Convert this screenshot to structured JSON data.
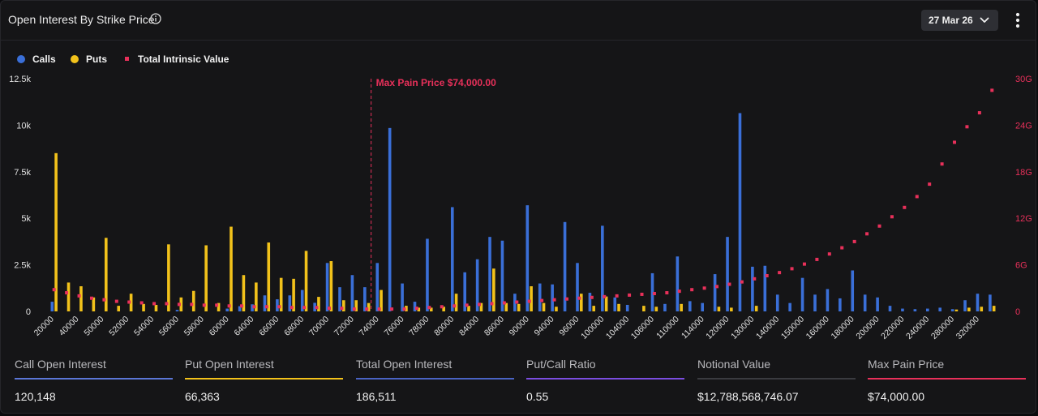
{
  "header": {
    "title": "Open Interest By Strike Price",
    "expiry": "27 Mar 26"
  },
  "legend": {
    "calls": "Calls",
    "puts": "Puts",
    "intrinsic": "Total Intrinsic Value"
  },
  "colors": {
    "calls": "#3a6fd8",
    "puts": "#f2c21b",
    "intrinsic": "#e8305a"
  },
  "stats": [
    {
      "label": "Call Open Interest",
      "value": "120,148",
      "color": "#5b76d6"
    },
    {
      "label": "Put Open Interest",
      "value": "66,363",
      "color": "#f2c21b"
    },
    {
      "label": "Total Open Interest",
      "value": "186,511",
      "color": "#4a63c4"
    },
    {
      "label": "Put/Call Ratio",
      "value": "0.55",
      "color": "#7b4de0"
    },
    {
      "label": "Notional Value",
      "value": "$12,788,568,746.07",
      "color": "#3a3b40"
    },
    {
      "label": "Max Pain Price",
      "value": "$74,000.00",
      "color": "#e8305a"
    }
  ],
  "chart_data": {
    "type": "bar",
    "title": "Open Interest By Strike Price",
    "annotation": "Max Pain Price $74,000.00",
    "max_pain_strike": 74000,
    "y_left": {
      "ticks": [
        "0",
        "2.5k",
        "5k",
        "7.5k",
        "10k",
        "12.5k"
      ],
      "range": [
        0,
        12500
      ]
    },
    "y_right": {
      "ticks": [
        "0",
        "6G",
        "12G",
        "18G",
        "24G",
        "30G"
      ],
      "range": [
        0,
        30
      ]
    },
    "x_tick_labels": [
      "20000",
      "40000",
      "50000",
      "52000",
      "54000",
      "56000",
      "58000",
      "60000",
      "64000",
      "66000",
      "68000",
      "70000",
      "72000",
      "74000",
      "76000",
      "78000",
      "80000",
      "84000",
      "86000",
      "90000",
      "94000",
      "96000",
      "100000",
      "104000",
      "106000",
      "110000",
      "114000",
      "120000",
      "130000",
      "140000",
      "150000",
      "160000",
      "180000",
      "200000",
      "220000",
      "240000",
      "280000",
      "320000"
    ],
    "categories": [
      "20000",
      "30000",
      "40000",
      "45000",
      "50000",
      "51000",
      "52000",
      "53000",
      "54000",
      "55000",
      "56000",
      "57000",
      "58000",
      "59000",
      "60000",
      "62000",
      "64000",
      "65000",
      "66000",
      "67000",
      "68000",
      "69000",
      "70000",
      "71000",
      "72000",
      "73000",
      "74000",
      "75000",
      "76000",
      "77000",
      "78000",
      "79000",
      "80000",
      "82000",
      "84000",
      "85000",
      "86000",
      "88000",
      "90000",
      "92000",
      "94000",
      "95000",
      "96000",
      "98000",
      "100000",
      "102000",
      "104000",
      "105000",
      "106000",
      "108000",
      "110000",
      "112000",
      "114000",
      "115000",
      "120000",
      "125000",
      "130000",
      "135000",
      "140000",
      "145000",
      "150000",
      "155000",
      "160000",
      "170000",
      "180000",
      "190000",
      "200000",
      "210000",
      "220000",
      "230000",
      "240000",
      "260000",
      "280000",
      "300000",
      "320000",
      "340000"
    ],
    "series": [
      {
        "name": "Calls",
        "values": [
          520,
          0,
          0,
          0,
          0,
          0,
          0,
          0,
          0,
          0,
          80,
          0,
          0,
          0,
          150,
          280,
          380,
          860,
          650,
          860,
          1150,
          460,
          2600,
          1300,
          1950,
          1300,
          2600,
          9850,
          1500,
          520,
          3900,
          0,
          5600,
          2100,
          2800,
          4000,
          3800,
          950,
          5700,
          1500,
          1450,
          4800,
          2600,
          1000,
          4600,
          750,
          350,
          0,
          2050,
          400,
          2950,
          550,
          450,
          2000,
          4000,
          10650,
          2400,
          2450,
          900,
          450,
          1800,
          900,
          1200,
          700,
          2200,
          900,
          750,
          300,
          150,
          120,
          150,
          200,
          120,
          600,
          950,
          900
        ]
      },
      {
        "name": "Puts",
        "values": [
          8500,
          1550,
          1350,
          750,
          3950,
          300,
          950,
          400,
          350,
          3600,
          750,
          1100,
          3550,
          450,
          4550,
          1950,
          1550,
          3700,
          1800,
          1750,
          3250,
          780,
          2700,
          600,
          600,
          450,
          1150,
          0,
          300,
          200,
          200,
          250,
          950,
          300,
          450,
          2300,
          450,
          400,
          1350,
          450,
          250,
          0,
          950,
          300,
          800,
          400,
          0,
          300,
          250,
          0,
          400,
          0,
          0,
          250,
          200,
          0,
          300,
          0,
          0,
          0,
          0,
          0,
          0,
          0,
          0,
          0,
          0,
          0,
          0,
          0,
          0,
          0,
          100,
          200,
          250,
          300
        ]
      },
      {
        "name": "Total Intrinsic Value",
        "values": [
          2.8,
          2.4,
          2.0,
          1.7,
          1.5,
          1.3,
          1.2,
          1.1,
          1.0,
          1.0,
          0.9,
          0.9,
          0.8,
          0.8,
          0.7,
          0.7,
          0.6,
          0.6,
          0.6,
          0.5,
          0.5,
          0.5,
          0.4,
          0.4,
          0.3,
          0.3,
          0.3,
          0.3,
          0.3,
          0.4,
          0.5,
          0.6,
          0.7,
          0.8,
          0.9,
          1.0,
          1.1,
          1.2,
          1.3,
          1.4,
          1.5,
          1.6,
          1.7,
          1.8,
          1.9,
          2.0,
          2.1,
          2.2,
          2.3,
          2.4,
          2.6,
          2.8,
          3.0,
          3.2,
          3.5,
          3.8,
          4.2,
          4.6,
          5.0,
          5.5,
          6.1,
          6.7,
          7.4,
          8.2,
          9.0,
          10.0,
          11.0,
          12.2,
          13.4,
          14.8,
          16.4,
          19.0,
          21.8,
          23.8,
          25.6,
          28.5
        ]
      }
    ]
  }
}
